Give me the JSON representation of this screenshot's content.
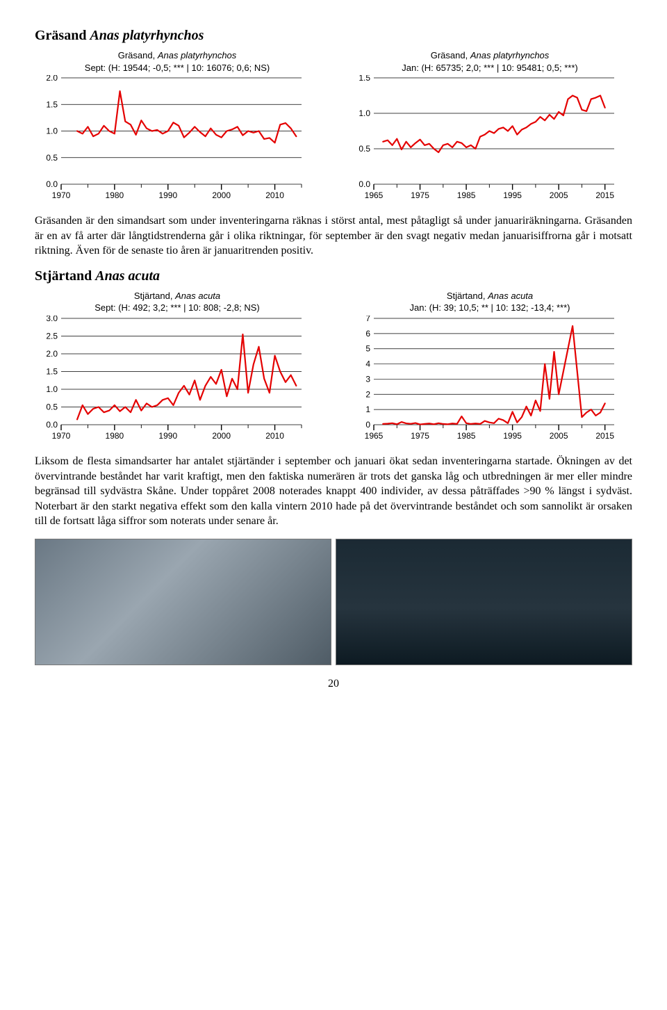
{
  "species1": {
    "heading_common": "Gräsand",
    "heading_sci": "Anas platyrhynchos",
    "paragraph": "Gräsanden är den simandsart som under inventeringarna räknas i störst antal, mest påtagligt så under januariräkningarna. Gräsanden är en av få arter där långtidstrenderna går i olika riktningar, för september är den svagt negativ medan januarisiffrorna går i motsatt riktning. Även för de senaste tio åren är januaritrenden positiv.",
    "chart_sept": {
      "type": "line",
      "title_l1_common": "Gräsand,",
      "title_l1_sci": "Anas platyrhynchos",
      "title_l2": "Sept: (H: 19544; -0,5; *** | 10: 16076; 0,6; NS)",
      "title_fontsize": 13,
      "line_color": "#e40000",
      "line_width": 2.2,
      "background_color": "#ffffff",
      "grid_color": "#000000",
      "xlim": [
        1970,
        2015
      ],
      "ylim": [
        0.0,
        2.0
      ],
      "ytick_step": 0.5,
      "yticks": [
        "0.0",
        "0.5",
        "1.0",
        "1.5",
        "2.0"
      ],
      "xticks": [
        1970,
        1980,
        1990,
        2000,
        2010
      ],
      "data": [
        [
          1973,
          1.0
        ],
        [
          1974,
          0.95
        ],
        [
          1975,
          1.08
        ],
        [
          1976,
          0.9
        ],
        [
          1977,
          0.95
        ],
        [
          1978,
          1.1
        ],
        [
          1979,
          1.0
        ],
        [
          1980,
          0.95
        ],
        [
          1981,
          1.75
        ],
        [
          1982,
          1.18
        ],
        [
          1983,
          1.12
        ],
        [
          1984,
          0.93
        ],
        [
          1985,
          1.2
        ],
        [
          1986,
          1.05
        ],
        [
          1987,
          1.0
        ],
        [
          1988,
          1.02
        ],
        [
          1989,
          0.95
        ],
        [
          1990,
          1.0
        ],
        [
          1991,
          1.16
        ],
        [
          1992,
          1.1
        ],
        [
          1993,
          0.88
        ],
        [
          1994,
          0.97
        ],
        [
          1995,
          1.08
        ],
        [
          1996,
          0.98
        ],
        [
          1997,
          0.9
        ],
        [
          1998,
          1.05
        ],
        [
          1999,
          0.93
        ],
        [
          2000,
          0.88
        ],
        [
          2001,
          1.0
        ],
        [
          2002,
          1.03
        ],
        [
          2003,
          1.08
        ],
        [
          2004,
          0.92
        ],
        [
          2005,
          1.0
        ],
        [
          2006,
          0.97
        ],
        [
          2007,
          1.0
        ],
        [
          2008,
          0.85
        ],
        [
          2009,
          0.87
        ],
        [
          2010,
          0.78
        ],
        [
          2011,
          1.12
        ],
        [
          2012,
          1.15
        ],
        [
          2013,
          1.05
        ],
        [
          2014,
          0.9
        ]
      ]
    },
    "chart_jan": {
      "type": "line",
      "title_l1_common": "Gräsand,",
      "title_l1_sci": "Anas platyrhynchos",
      "title_l2": "Jan: (H: 65735; 2,0; *** | 10: 95481; 0,5; ***)",
      "title_fontsize": 13,
      "line_color": "#e40000",
      "line_width": 2.2,
      "background_color": "#ffffff",
      "grid_color": "#000000",
      "xlim": [
        1965,
        2017
      ],
      "ylim": [
        0.0,
        1.5
      ],
      "ytick_step": 0.5,
      "yticks": [
        "0.0",
        "0.5",
        "1.0",
        "1.5"
      ],
      "xticks": [
        1965,
        1975,
        1985,
        1995,
        2005,
        2015
      ],
      "data": [
        [
          1967,
          0.6
        ],
        [
          1968,
          0.62
        ],
        [
          1969,
          0.55
        ],
        [
          1970,
          0.64
        ],
        [
          1971,
          0.49
        ],
        [
          1972,
          0.6
        ],
        [
          1973,
          0.52
        ],
        [
          1974,
          0.58
        ],
        [
          1975,
          0.63
        ],
        [
          1976,
          0.55
        ],
        [
          1977,
          0.57
        ],
        [
          1978,
          0.5
        ],
        [
          1979,
          0.45
        ],
        [
          1980,
          0.55
        ],
        [
          1981,
          0.57
        ],
        [
          1982,
          0.52
        ],
        [
          1983,
          0.6
        ],
        [
          1984,
          0.58
        ],
        [
          1985,
          0.52
        ],
        [
          1986,
          0.55
        ],
        [
          1987,
          0.5
        ],
        [
          1988,
          0.67
        ],
        [
          1989,
          0.7
        ],
        [
          1990,
          0.75
        ],
        [
          1991,
          0.72
        ],
        [
          1992,
          0.78
        ],
        [
          1993,
          0.8
        ],
        [
          1994,
          0.75
        ],
        [
          1995,
          0.82
        ],
        [
          1996,
          0.7
        ],
        [
          1997,
          0.77
        ],
        [
          1998,
          0.8
        ],
        [
          1999,
          0.85
        ],
        [
          2000,
          0.88
        ],
        [
          2001,
          0.95
        ],
        [
          2002,
          0.9
        ],
        [
          2003,
          0.98
        ],
        [
          2004,
          0.92
        ],
        [
          2005,
          1.02
        ],
        [
          2006,
          0.97
        ],
        [
          2007,
          1.2
        ],
        [
          2008,
          1.25
        ],
        [
          2009,
          1.22
        ],
        [
          2010,
          1.05
        ],
        [
          2011,
          1.03
        ],
        [
          2012,
          1.2
        ],
        [
          2013,
          1.22
        ],
        [
          2014,
          1.25
        ],
        [
          2015,
          1.08
        ]
      ]
    }
  },
  "species2": {
    "heading_common": "Stjärtand",
    "heading_sci": "Anas acuta",
    "paragraph": "Liksom de flesta simandsarter har antalet stjärtänder i september och januari ökat sedan inventeringarna startade. Ökningen av det övervintrande beståndet har varit kraftigt, men den faktiska numerären är trots det ganska låg och utbredningen är mer eller mindre begränsad till sydvästra Skåne. Under toppåret 2008 noterades knappt 400 individer, av dessa påträffades >90 % längst i sydväst. Noterbart är den starkt negativa effekt som den kalla vintern 2010 hade på det övervintrande beståndet och som sannolikt är orsaken till de fortsatt låga siffror som noterats under senare år.",
    "chart_sept": {
      "type": "line",
      "title_l1_common": "Stjärtand,",
      "title_l1_sci": "Anas acuta",
      "title_l2": "Sept: (H: 492; 3,2; *** | 10: 808; -2,8; NS)",
      "title_fontsize": 13,
      "line_color": "#e40000",
      "line_width": 2.2,
      "background_color": "#ffffff",
      "grid_color": "#000000",
      "xlim": [
        1970,
        2015
      ],
      "ylim": [
        0.0,
        3.0
      ],
      "ytick_step": 0.5,
      "yticks": [
        "0.0",
        "0.5",
        "1.0",
        "1.5",
        "2.0",
        "2.5",
        "3.0"
      ],
      "xticks": [
        1970,
        1980,
        1990,
        2000,
        2010
      ],
      "data": [
        [
          1973,
          0.15
        ],
        [
          1974,
          0.55
        ],
        [
          1975,
          0.3
        ],
        [
          1976,
          0.45
        ],
        [
          1977,
          0.5
        ],
        [
          1978,
          0.35
        ],
        [
          1979,
          0.4
        ],
        [
          1980,
          0.55
        ],
        [
          1981,
          0.38
        ],
        [
          1982,
          0.5
        ],
        [
          1983,
          0.35
        ],
        [
          1984,
          0.7
        ],
        [
          1985,
          0.4
        ],
        [
          1986,
          0.6
        ],
        [
          1987,
          0.5
        ],
        [
          1988,
          0.55
        ],
        [
          1989,
          0.7
        ],
        [
          1990,
          0.75
        ],
        [
          1991,
          0.55
        ],
        [
          1992,
          0.9
        ],
        [
          1993,
          1.1
        ],
        [
          1994,
          0.85
        ],
        [
          1995,
          1.25
        ],
        [
          1996,
          0.7
        ],
        [
          1997,
          1.1
        ],
        [
          1998,
          1.35
        ],
        [
          1999,
          1.15
        ],
        [
          2000,
          1.55
        ],
        [
          2001,
          0.8
        ],
        [
          2002,
          1.3
        ],
        [
          2003,
          1.0
        ],
        [
          2004,
          2.55
        ],
        [
          2005,
          0.9
        ],
        [
          2006,
          1.7
        ],
        [
          2007,
          2.2
        ],
        [
          2008,
          1.3
        ],
        [
          2009,
          0.9
        ],
        [
          2010,
          1.95
        ],
        [
          2011,
          1.5
        ],
        [
          2012,
          1.2
        ],
        [
          2013,
          1.4
        ],
        [
          2014,
          1.1
        ]
      ]
    },
    "chart_jan": {
      "type": "line",
      "title_l1_common": "Stjärtand,",
      "title_l1_sci": "Anas acuta",
      "title_l2": "Jan: (H: 39; 10,5; ** | 10: 132; -13,4; ***)",
      "title_fontsize": 13,
      "line_color": "#e40000",
      "line_width": 2.2,
      "background_color": "#ffffff",
      "grid_color": "#000000",
      "xlim": [
        1965,
        2017
      ],
      "ylim": [
        0,
        7
      ],
      "ytick_step": 1,
      "yticks": [
        "0",
        "1",
        "2",
        "3",
        "4",
        "5",
        "6",
        "7"
      ],
      "xticks": [
        1965,
        1975,
        1985,
        1995,
        2005,
        2015
      ],
      "data": [
        [
          1967,
          0.05
        ],
        [
          1968,
          0.07
        ],
        [
          1969,
          0.1
        ],
        [
          1970,
          0.03
        ],
        [
          1971,
          0.18
        ],
        [
          1972,
          0.09
        ],
        [
          1973,
          0.06
        ],
        [
          1974,
          0.11
        ],
        [
          1975,
          0.02
        ],
        [
          1976,
          0.05
        ],
        [
          1977,
          0.08
        ],
        [
          1978,
          0.03
        ],
        [
          1979,
          0.1
        ],
        [
          1980,
          0.05
        ],
        [
          1981,
          0.03
        ],
        [
          1982,
          0.08
        ],
        [
          1983,
          0.05
        ],
        [
          1984,
          0.55
        ],
        [
          1985,
          0.1
        ],
        [
          1986,
          0.05
        ],
        [
          1987,
          0.08
        ],
        [
          1988,
          0.05
        ],
        [
          1989,
          0.25
        ],
        [
          1990,
          0.15
        ],
        [
          1991,
          0.1
        ],
        [
          1992,
          0.4
        ],
        [
          1993,
          0.3
        ],
        [
          1994,
          0.1
        ],
        [
          1995,
          0.85
        ],
        [
          1996,
          0.15
        ],
        [
          1997,
          0.5
        ],
        [
          1998,
          1.2
        ],
        [
          1999,
          0.6
        ],
        [
          2000,
          1.6
        ],
        [
          2001,
          0.9
        ],
        [
          2002,
          4.0
        ],
        [
          2003,
          1.7
        ],
        [
          2004,
          4.8
        ],
        [
          2005,
          2.0
        ],
        [
          2006,
          3.5
        ],
        [
          2007,
          5.0
        ],
        [
          2008,
          6.5
        ],
        [
          2009,
          3.5
        ],
        [
          2010,
          0.5
        ],
        [
          2011,
          0.8
        ],
        [
          2012,
          1.0
        ],
        [
          2013,
          0.6
        ],
        [
          2014,
          0.8
        ],
        [
          2015,
          1.4
        ]
      ]
    }
  },
  "photos": {
    "left": {
      "alt": "photo-ducks-flock",
      "grad": "linear-gradient(135deg,#6a7884 0%,#9aa6b0 40%,#4f5c66 100%)"
    },
    "right": {
      "alt": "photo-wigeon-pair",
      "grad": "linear-gradient(180deg,#1b2a34 0%,#26343e 55%,#0d1a22 100%)"
    }
  },
  "page_number": "20"
}
